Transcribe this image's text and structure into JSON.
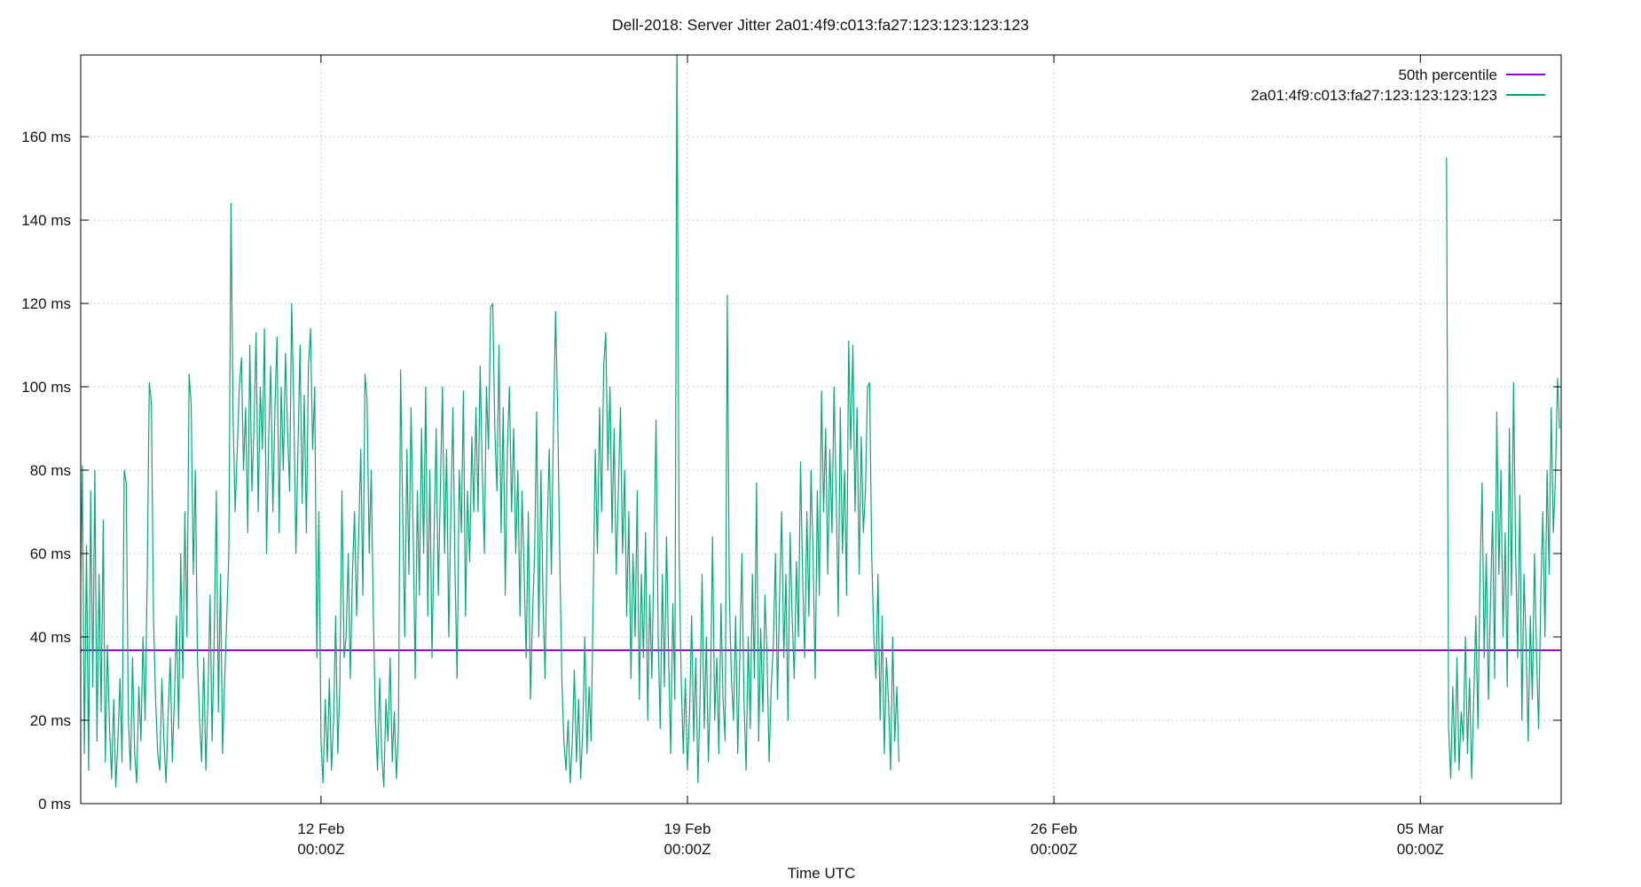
{
  "page": {
    "title": "Dell-2018: Server Jitter 2a01:4f9:c013:fa27:123:123:123:123"
  },
  "chart_data": {
    "type": "line",
    "title": "Dell-2018: Server Jitter 2a01:4f9:c013:fa27:123:123:123:123",
    "xlabel": "Time UTC",
    "ylabel": "",
    "grid": {
      "shown": true,
      "style": "dotted",
      "color": "#bdbdbd"
    },
    "x_axis": {
      "unit": "days relative to 12 Feb 00:00Z",
      "range_days": [
        -4.59,
        23.69
      ],
      "ticks": [
        {
          "pos_days": 0,
          "label_line1": "12 Feb",
          "label_line2": "00:00Z"
        },
        {
          "pos_days": 7,
          "label_line1": "19 Feb",
          "label_line2": "00:00Z"
        },
        {
          "pos_days": 14,
          "label_line1": "26 Feb",
          "label_line2": "00:00Z"
        },
        {
          "pos_days": 21,
          "label_line1": "05 Mar",
          "label_line2": "00:00Z"
        }
      ]
    },
    "y_axis": {
      "unit": "ms",
      "range": [
        0,
        179.6
      ],
      "ticks": [
        {
          "value": 0,
          "label": "0 ms"
        },
        {
          "value": 20,
          "label": "20 ms"
        },
        {
          "value": 40,
          "label": "40 ms"
        },
        {
          "value": 60,
          "label": "60 ms"
        },
        {
          "value": 80,
          "label": "80 ms"
        },
        {
          "value": 100,
          "label": "100 ms"
        },
        {
          "value": 120,
          "label": "120 ms"
        },
        {
          "value": 140,
          "label": "140 ms"
        },
        {
          "value": 160,
          "label": "160 ms"
        }
      ]
    },
    "legend": {
      "position": "top-right",
      "entries": [
        {
          "label": "50th percentile",
          "color": "#9400d3"
        },
        {
          "label": "2a01:4f9:c013:fa27:123:123:123:123",
          "color": "#009e73"
        }
      ]
    },
    "series": [
      {
        "name": "50th percentile",
        "type": "constant",
        "value_ms": 36.8,
        "color": "#9400d3"
      },
      {
        "name": "2a01:4f9:c013:fa27:123:123:123:123",
        "type": "line",
        "color": "#0ca57c",
        "segments": [
          {
            "start_day": -4.6,
            "dt_days": 0.04,
            "values_ms": [
              45,
              81,
              12,
              62,
              8,
              75,
              28,
              80,
              15,
              55,
              22,
              68,
              10,
              38,
              18,
              6,
              25,
              4,
              15,
              30,
              10,
              80,
              77,
              20,
              8,
              35,
              12,
              5,
              28,
              15,
              40,
              20,
              55,
              101,
              96,
              45,
              25,
              12,
              8,
              30,
              15,
              5,
              22,
              35,
              10,
              25,
              45,
              18,
              60,
              30,
              70,
              40,
              103,
              96,
              55,
              80,
              35,
              20,
              10,
              35,
              8,
              25,
              50,
              15,
              40,
              75,
              22,
              55,
              12,
              30,
              45,
              60,
              144,
              93,
              70,
              85,
              100,
              107,
              80,
              95,
              65,
              110,
              75,
              90,
              113,
              70,
              100,
              85,
              114,
              60,
              88,
              105,
              70,
              95,
              112,
              65,
              100,
              80,
              108,
              90,
              75,
              120,
              95,
              60,
              85,
              110,
              72,
              98,
              65,
              105,
              114,
              85,
              100,
              35,
              70,
              15,
              5,
              25,
              10,
              30,
              8,
              20,
              45,
              12,
              28,
              75,
              35,
              40,
              60,
              30,
              55,
              70,
              45,
              65,
              85,
              50,
              103,
              97,
              60,
              80,
              45,
              20,
              8,
              30,
              12,
              4,
              25,
              15,
              35,
              10,
              22,
              6,
              18,
              104,
              70,
              40,
              85,
              55,
              95,
              65,
              30,
              75,
              50,
              90,
              60,
              100,
              45,
              80,
              35,
              65,
              90,
              50,
              75,
              100,
              60,
              85,
              40,
              70,
              95,
              55,
              30,
              80,
              65,
              99,
              45,
              75,
              58,
              88,
              70,
              95,
              70,
              105,
              80,
              60,
              100,
              85,
              119,
              120,
              90,
              75,
              110,
              65,
              95,
              50,
              85,
              100,
              70,
              90,
              60,
              80,
              45,
              75,
              55,
              35,
              70,
              25,
              45,
              60,
              94,
              40,
              80,
              50,
              30,
              65,
              85,
              55,
              90,
              118,
              95,
              60,
              30,
              15,
              8,
              20,
              5,
              15,
              32,
              10,
              25,
              6,
              18,
              40,
              12,
              28,
              15,
              50,
              85,
              60,
              95,
              70,
              105,
              113,
              80,
              100,
              65,
              90,
              55,
              75,
              95,
              60,
              80,
              45,
              70,
              30,
              60,
              40,
              75,
              25,
              55,
              35,
              65,
              20,
              50,
              30,
              60,
              92,
              40,
              18,
              55,
              28,
              64,
              35,
              12,
              48,
              25,
              185,
              60,
              30,
              12,
              30,
              8,
              22,
              45,
              15,
              35,
              5,
              25,
              55,
              18,
              40,
              10,
              28,
              64,
              20,
              35,
              12,
              48,
              25,
              15,
              122,
              50,
              30,
              20,
              45,
              12,
              35,
              60,
              25,
              8,
              40,
              18,
              55,
              30,
              77,
              15,
              42,
              22,
              50,
              35,
              10,
              28,
              38,
              60,
              25,
              50,
              70,
              35,
              55,
              20,
              65,
              45,
              30,
              58,
              40,
              82,
              55,
              35,
              70,
              45,
              80,
              60,
              30,
              75,
              50,
              99,
              70,
              90,
              55,
              85,
              65,
              100,
              75,
              45,
              95,
              60,
              80,
              50,
              111,
              85,
              110,
              70,
              95,
              55,
              88,
              65,
              75,
              100,
              101,
              60,
              40,
              30,
              55,
              20,
              45,
              12,
              35,
              25,
              8,
              40,
              15,
              28,
              10
            ]
          },
          {
            "start_day": 21.5,
            "dt_days": 0.04,
            "values_ms": [
              155,
              18,
              6,
              28,
              10,
              35,
              8,
              22,
              15,
              40,
              12,
              30,
              6,
              25,
              45,
              18,
              55,
              77,
              35,
              60,
              25,
              48,
              70,
              30,
              94,
              55,
              80,
              40,
              65,
              28,
              90,
              50,
              101,
              60,
              35,
              74,
              20,
              55,
              38,
              15,
              45,
              25,
              60,
              35,
              18,
              50,
              70,
              40,
              80,
              55,
              95,
              65,
              78,
              102,
              90
            ]
          }
        ]
      }
    ]
  }
}
